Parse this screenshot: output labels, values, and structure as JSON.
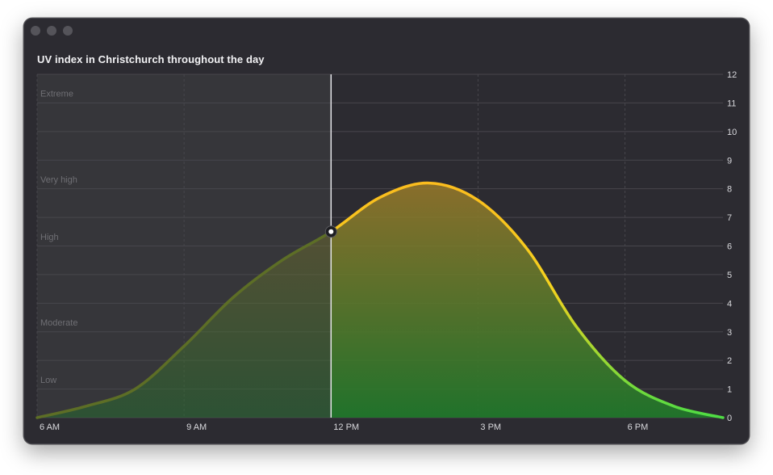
{
  "window": {
    "title": "UV index in Christchurch throughout the day",
    "controls": [
      "close",
      "minimize",
      "zoom"
    ]
  },
  "chart_data": {
    "type": "area",
    "title": "UV index in Christchurch throughout the day",
    "xlabel": "",
    "ylabel": "",
    "x_unit": "hour of day",
    "xlim": [
      6,
      20
    ],
    "ylim": [
      0,
      12
    ],
    "x_ticks": [
      {
        "value": 6,
        "label": "6 AM"
      },
      {
        "value": 9,
        "label": "9 AM"
      },
      {
        "value": 12,
        "label": "12 PM"
      },
      {
        "value": 15,
        "label": "3 PM"
      },
      {
        "value": 18,
        "label": "6 PM"
      }
    ],
    "y_ticks": [
      0,
      1,
      2,
      3,
      4,
      5,
      6,
      7,
      8,
      9,
      10,
      11,
      12
    ],
    "y_axis_position": "right",
    "grid": true,
    "uv_bands": [
      {
        "label": "Low",
        "y": 1
      },
      {
        "label": "Moderate",
        "y": 3
      },
      {
        "label": "High",
        "y": 6
      },
      {
        "label": "Very high",
        "y": 8
      },
      {
        "label": "Extreme",
        "y": 11
      }
    ],
    "x": [
      6.0,
      7.0,
      8.0,
      9.0,
      10.0,
      11.0,
      12.0,
      13.0,
      14.0,
      15.0,
      16.0,
      17.0,
      18.0,
      19.0,
      20.0
    ],
    "y": [
      0.0,
      0.4,
      1.0,
      2.5,
      4.2,
      5.5,
      6.5,
      7.7,
      8.2,
      7.6,
      5.9,
      3.2,
      1.3,
      0.4,
      0.0
    ],
    "current": {
      "x": 12.0,
      "y": 6.5
    },
    "colors": {
      "past_line": "#5d6e26",
      "future_line_top": "#fbbc1e",
      "future_line_bottom": "#4edc44",
      "fill_top": "#9a7a2a",
      "fill_bottom": "#1f7a2a",
      "window_bg": "#2c2b31",
      "past_shade": "#36363a",
      "gridline": "#47464c",
      "axis_text": "#d8d8dc",
      "band_text": "#6f6f74"
    }
  }
}
